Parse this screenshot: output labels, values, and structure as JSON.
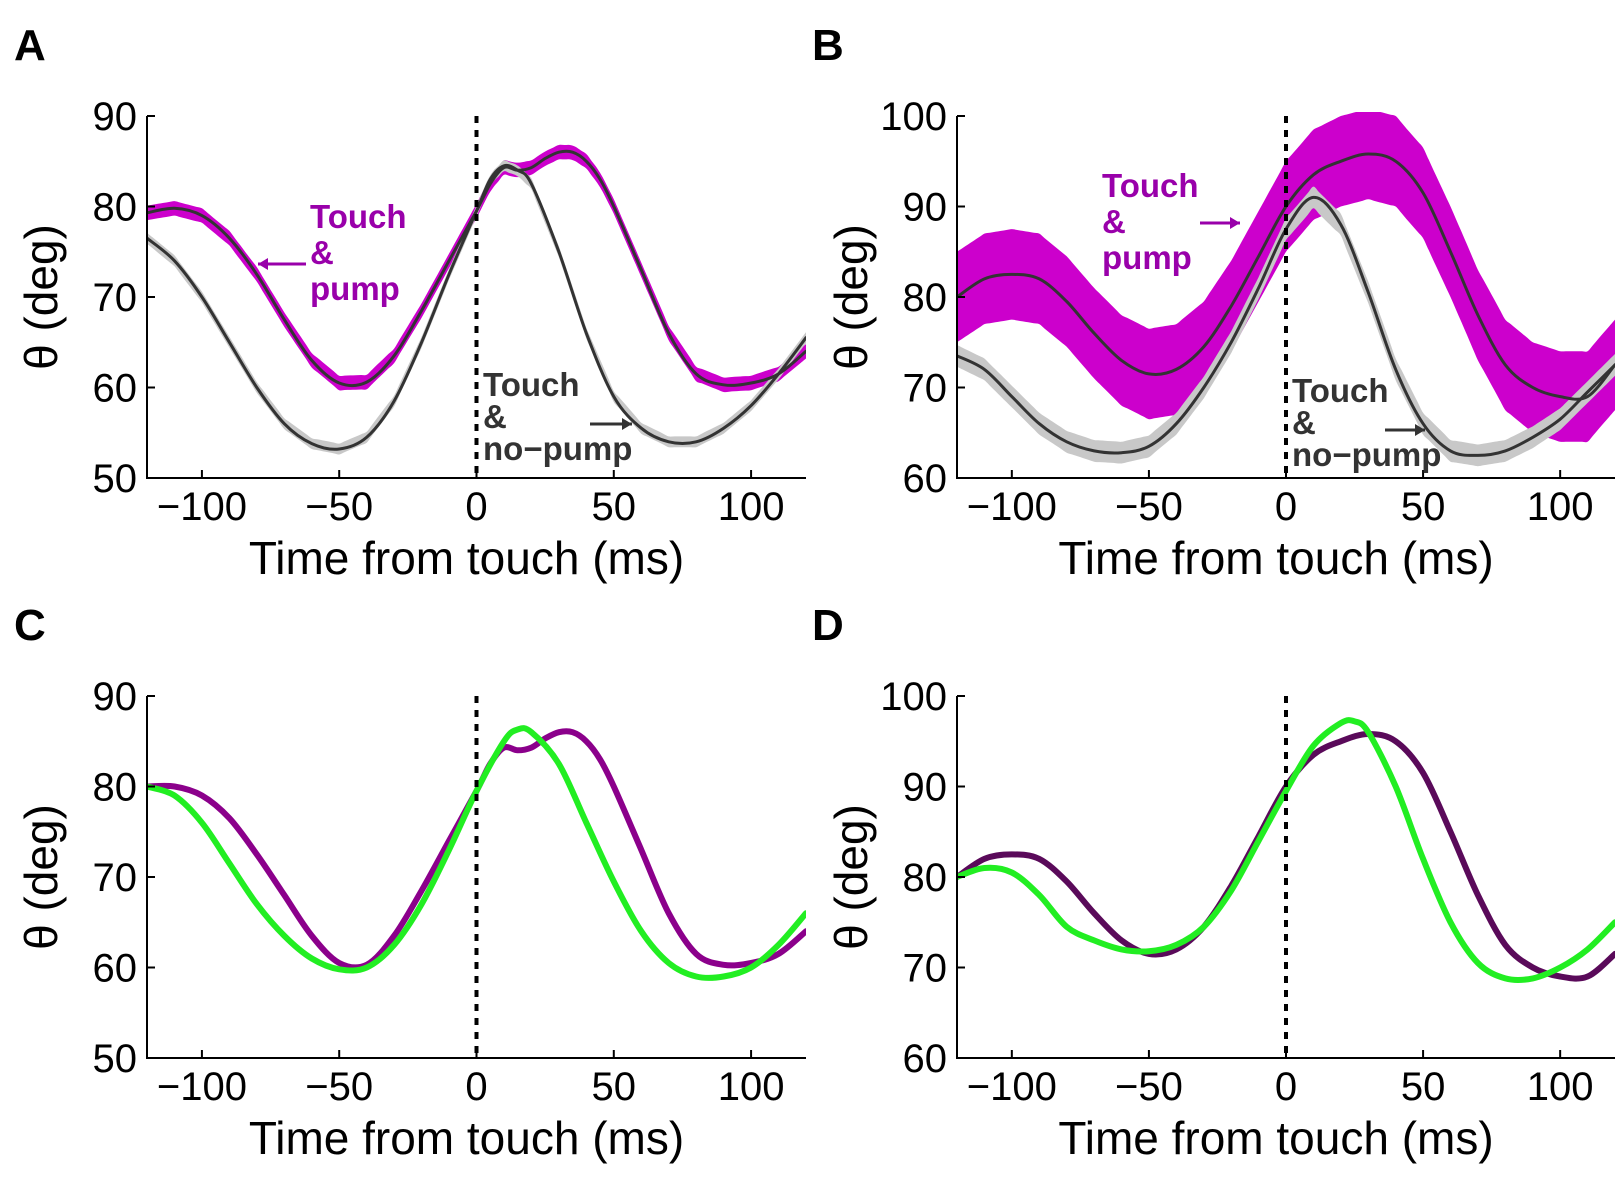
{
  "figure": {
    "panels": [
      "A",
      "B",
      "C",
      "D"
    ]
  },
  "colors": {
    "magenta": "#cc00cc",
    "purple": "#8b008b",
    "dark_purple": "#5a0a5a",
    "green": "#22ee22",
    "dark": "#333333",
    "gray_band": "#c8c8c8",
    "label_purple": "#9900aa"
  },
  "chart_data": [
    {
      "panel": "A",
      "type": "line",
      "xlabel": "Time from touch (ms)",
      "ylabel": "θ (deg)",
      "xlim": [
        -120,
        120
      ],
      "ylim": [
        50,
        90
      ],
      "xticks": [
        "−100",
        "−50",
        "0",
        "50",
        "100"
      ],
      "xtick_values": [
        -100,
        -50,
        0,
        50,
        100
      ],
      "yticks": [
        "50",
        "60",
        "70",
        "80",
        "90"
      ],
      "ytick_values": [
        50,
        60,
        70,
        80,
        90
      ],
      "vline_x": 0,
      "annotations": {
        "pump_lines": [
          "Touch",
          "&",
          "pump"
        ],
        "nopump_lines": [
          "Touch",
          "&",
          "no−pump"
        ]
      },
      "series": [
        {
          "name": "Touch & pump",
          "role": "pump",
          "band": 0.8,
          "x": [
            -120,
            -110,
            -100,
            -90,
            -80,
            -70,
            -60,
            -50,
            -40,
            -30,
            -20,
            -10,
            0,
            5,
            10,
            15,
            20,
            25,
            30,
            35,
            40,
            45,
            50,
            60,
            70,
            80,
            90,
            100,
            110,
            120
          ],
          "y": [
            79.3,
            79.8,
            79.0,
            76.5,
            72.5,
            67.5,
            63.0,
            60.5,
            60.6,
            63.5,
            68.5,
            74.0,
            79.5,
            82.5,
            84.3,
            84.0,
            84.3,
            85.3,
            86.0,
            86.0,
            85.0,
            83.0,
            80.0,
            73.0,
            66.0,
            61.5,
            60.3,
            60.5,
            61.5,
            64.0
          ]
        },
        {
          "name": "Touch & no−pump",
          "role": "nopump",
          "band": 0.6,
          "x": [
            -120,
            -110,
            -100,
            -90,
            -80,
            -70,
            -60,
            -50,
            -40,
            -30,
            -20,
            -10,
            0,
            5,
            10,
            15,
            20,
            30,
            40,
            50,
            60,
            70,
            80,
            90,
            100,
            110,
            120
          ],
          "y": [
            76.5,
            74.0,
            70.0,
            65.0,
            60.0,
            56.0,
            53.8,
            53.2,
            54.5,
            58.5,
            65.0,
            72.5,
            79.5,
            83.0,
            84.5,
            84.0,
            82.5,
            75.0,
            66.0,
            59.0,
            55.5,
            54.0,
            54.0,
            55.5,
            58.0,
            61.5,
            65.5
          ]
        }
      ]
    },
    {
      "panel": "B",
      "type": "line",
      "xlabel": "Time from touch (ms)",
      "ylabel": "θ (deg)",
      "xlim": [
        -120,
        120
      ],
      "ylim": [
        60,
        100
      ],
      "xticks": [
        "−100",
        "−50",
        "0",
        "50",
        "100"
      ],
      "xtick_values": [
        -100,
        -50,
        0,
        50,
        100
      ],
      "yticks": [
        "60",
        "70",
        "80",
        "90",
        "100"
      ],
      "ytick_values": [
        60,
        70,
        80,
        90,
        100
      ],
      "vline_x": 0,
      "annotations": {
        "pump_lines": [
          "Touch",
          "&",
          "pump"
        ],
        "nopump_lines": [
          "Touch",
          "&",
          "no−pump"
        ]
      },
      "series": [
        {
          "name": "Touch & pump",
          "role": "pump",
          "band": 5,
          "x": [
            -120,
            -110,
            -100,
            -90,
            -80,
            -70,
            -60,
            -50,
            -40,
            -30,
            -20,
            -10,
            0,
            10,
            20,
            30,
            40,
            50,
            60,
            70,
            80,
            90,
            100,
            110,
            120
          ],
          "y": [
            80.0,
            82.0,
            82.5,
            82.0,
            79.5,
            76.0,
            73.0,
            71.5,
            72.0,
            74.5,
            79.0,
            84.5,
            90.0,
            93.5,
            95.0,
            95.8,
            95.0,
            91.5,
            85.0,
            78.0,
            72.5,
            70.0,
            69.0,
            69.0,
            72.5
          ]
        },
        {
          "name": "Touch & no−pump",
          "role": "nopump",
          "band": 1.2,
          "x": [
            -120,
            -110,
            -100,
            -90,
            -80,
            -70,
            -60,
            -50,
            -40,
            -30,
            -20,
            -10,
            0,
            10,
            20,
            30,
            40,
            50,
            60,
            70,
            80,
            90,
            100,
            110,
            120
          ],
          "y": [
            73.5,
            72.0,
            69.0,
            66.0,
            64.0,
            63.0,
            62.8,
            63.5,
            66.0,
            70.0,
            75.0,
            81.0,
            87.5,
            91.0,
            88.0,
            80.5,
            72.0,
            66.0,
            63.0,
            62.5,
            63.0,
            64.5,
            66.5,
            69.5,
            72.5
          ]
        }
      ]
    },
    {
      "panel": "C",
      "type": "line",
      "xlabel": "Time from touch (ms)",
      "ylabel": "θ (deg)",
      "xlim": [
        -120,
        120
      ],
      "ylim": [
        50,
        90
      ],
      "xticks": [
        "−100",
        "−50",
        "0",
        "50",
        "100"
      ],
      "xtick_values": [
        -100,
        -50,
        0,
        50,
        100
      ],
      "yticks": [
        "50",
        "60",
        "70",
        "80",
        "90"
      ],
      "ytick_values": [
        50,
        60,
        70,
        80,
        90
      ],
      "vline_x": 0,
      "series": [
        {
          "role": "purple",
          "x": [
            -120,
            -110,
            -100,
            -90,
            -80,
            -70,
            -60,
            -50,
            -40,
            -30,
            -20,
            -10,
            0,
            5,
            10,
            15,
            20,
            25,
            30,
            35,
            40,
            45,
            50,
            60,
            70,
            80,
            90,
            100,
            110,
            120
          ],
          "y": [
            80.0,
            80.0,
            79.0,
            76.5,
            72.5,
            68.0,
            63.5,
            60.5,
            60.3,
            63.5,
            68.5,
            74.0,
            79.5,
            82.5,
            84.3,
            84.0,
            84.3,
            85.3,
            86.0,
            86.0,
            85.0,
            83.0,
            80.0,
            73.0,
            66.0,
            61.5,
            60.3,
            60.5,
            61.5,
            64.0
          ]
        },
        {
          "role": "green",
          "x": [
            -120,
            -110,
            -100,
            -90,
            -80,
            -70,
            -60,
            -50,
            -40,
            -30,
            -20,
            -10,
            0,
            10,
            15,
            20,
            30,
            40,
            50,
            60,
            70,
            80,
            90,
            100,
            110,
            120
          ],
          "y": [
            80.0,
            79.0,
            76.0,
            71.5,
            67.0,
            63.5,
            61.0,
            59.8,
            60.0,
            62.5,
            67.0,
            73.0,
            79.5,
            85.0,
            86.3,
            86.0,
            82.5,
            76.0,
            69.5,
            64.0,
            60.5,
            59.0,
            59.0,
            60.0,
            62.5,
            66.0
          ]
        }
      ]
    },
    {
      "panel": "D",
      "type": "line",
      "xlabel": "Time from touch (ms)",
      "ylabel": "θ (deg)",
      "xlim": [
        -120,
        120
      ],
      "ylim": [
        60,
        100
      ],
      "xticks": [
        "−100",
        "−50",
        "0",
        "50",
        "100"
      ],
      "xtick_values": [
        -100,
        -50,
        0,
        50,
        100
      ],
      "yticks": [
        "60",
        "70",
        "80",
        "90",
        "100"
      ],
      "ytick_values": [
        60,
        70,
        80,
        90,
        100
      ],
      "vline_x": 0,
      "series": [
        {
          "role": "dark_purple",
          "x": [
            -120,
            -110,
            -100,
            -90,
            -80,
            -70,
            -60,
            -50,
            -40,
            -30,
            -20,
            -10,
            0,
            10,
            20,
            30,
            40,
            50,
            60,
            70,
            80,
            90,
            100,
            110,
            120
          ],
          "y": [
            80.0,
            82.0,
            82.5,
            82.0,
            79.5,
            76.0,
            73.0,
            71.5,
            72.0,
            74.5,
            79.0,
            84.5,
            90.0,
            93.5,
            95.0,
            95.8,
            95.0,
            91.5,
            85.0,
            78.0,
            72.5,
            70.0,
            69.0,
            69.0,
            71.5
          ]
        },
        {
          "role": "green",
          "x": [
            -120,
            -110,
            -100,
            -90,
            -80,
            -70,
            -60,
            -50,
            -40,
            -30,
            -20,
            -10,
            0,
            10,
            20,
            25,
            30,
            40,
            50,
            60,
            70,
            80,
            90,
            100,
            110,
            120
          ],
          "y": [
            80.0,
            81.0,
            80.5,
            78.0,
            74.5,
            73.0,
            72.0,
            71.8,
            72.5,
            74.5,
            78.5,
            84.0,
            89.5,
            94.5,
            97.0,
            97.2,
            96.0,
            90.0,
            82.0,
            75.0,
            70.5,
            68.8,
            68.8,
            70.0,
            72.0,
            75.0
          ]
        }
      ]
    }
  ]
}
